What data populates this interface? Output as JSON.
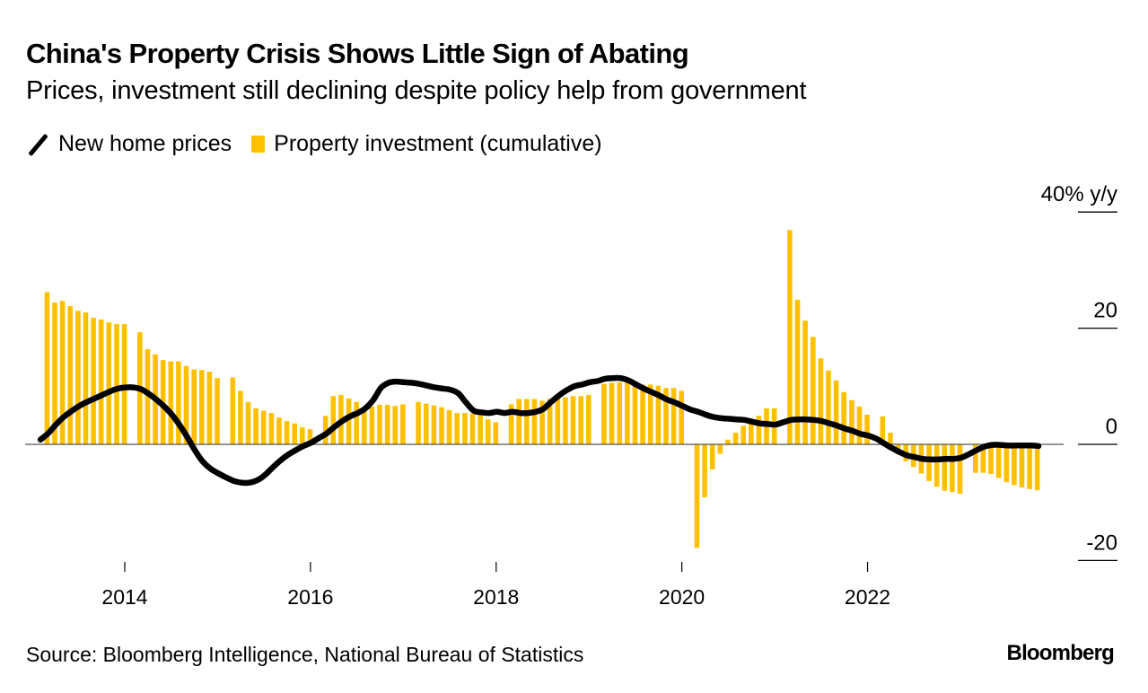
{
  "header": {
    "title": "China's Property Crisis Shows Little Sign of Abating",
    "subtitle": "Prices, investment still declining despite policy help from government"
  },
  "legend": {
    "items": [
      {
        "label": "New home prices",
        "kind": "line",
        "color": "#000000"
      },
      {
        "label": "Property investment (cumulative)",
        "kind": "bar",
        "color": "#ffc000"
      }
    ]
  },
  "footer": {
    "source": "Source: Bloomberg Intelligence, National Bureau of Statistics",
    "brand": "Bloomberg"
  },
  "chart_data": {
    "type": "bar",
    "title": "China's Property Crisis Shows Little Sign of Abating",
    "subtitle": "Prices, investment still declining despite policy help from government",
    "xlabel": "",
    "ylabel": "% y/y",
    "ylim": [
      -20,
      40
    ],
    "yticks": [
      {
        "value": 40,
        "label": "40% y/y"
      },
      {
        "value": 20,
        "label": "20"
      },
      {
        "value": 0,
        "label": "0"
      },
      {
        "value": -20,
        "label": "-20"
      }
    ],
    "xticks": [
      {
        "year": 2014,
        "label": "2014"
      },
      {
        "year": 2016,
        "label": "2016"
      },
      {
        "year": 2018,
        "label": "2018"
      },
      {
        "year": 2020,
        "label": "2020"
      },
      {
        "year": 2022,
        "label": "2022"
      }
    ],
    "x_start": "2013-01",
    "frequency": "monthly",
    "legend_position": "top-left",
    "grid": false,
    "series": [
      {
        "name": "Property investment (cumulative)",
        "type": "bar",
        "color": "#ffc000",
        "values": [
          null,
          26.2,
          24.4,
          24.7,
          23.8,
          23.0,
          22.7,
          21.8,
          21.5,
          21.0,
          20.7,
          20.7,
          null,
          19.3,
          16.4,
          15.5,
          14.5,
          14.3,
          14.3,
          13.5,
          12.9,
          12.8,
          12.5,
          11.4,
          null,
          11.5,
          9.2,
          7.3,
          6.2,
          5.8,
          5.4,
          4.6,
          4.0,
          3.6,
          2.9,
          2.6,
          null,
          4.9,
          8.3,
          8.5,
          7.9,
          7.3,
          6.1,
          6.5,
          6.8,
          6.8,
          6.6,
          6.9,
          null,
          7.3,
          7.0,
          6.7,
          6.4,
          5.9,
          5.4,
          5.4,
          5.3,
          5.0,
          4.3,
          3.8,
          null,
          6.9,
          7.8,
          7.8,
          7.8,
          7.5,
          7.8,
          8.1,
          8.1,
          8.3,
          8.3,
          8.5,
          null,
          10.4,
          10.6,
          10.7,
          10.7,
          10.6,
          10.3,
          10.3,
          10.1,
          9.7,
          9.7,
          9.2,
          null,
          -17.8,
          -9.1,
          -4.3,
          -1.6,
          0.8,
          2.0,
          3.2,
          4.3,
          4.9,
          6.2,
          6.2,
          null,
          36.9,
          24.9,
          21.3,
          18.5,
          14.8,
          12.7,
          11.0,
          9.0,
          7.6,
          6.5,
          5.1,
          null,
          4.8,
          2.0,
          -1.7,
          -2.9,
          -3.9,
          -5.0,
          -6.3,
          -7.3,
          -8.0,
          -8.2,
          -8.5,
          null,
          -4.9,
          -4.9,
          -5.1,
          -5.8,
          -6.5,
          -7.0,
          -7.4,
          -7.7,
          -7.9
        ]
      },
      {
        "name": "New home prices",
        "type": "line",
        "color": "#000000",
        "values": [
          0.8,
          1.9,
          3.4,
          4.7,
          5.7,
          6.6,
          7.3,
          7.9,
          8.5,
          9.1,
          9.6,
          9.8,
          9.8,
          9.5,
          8.7,
          7.7,
          6.5,
          5.1,
          3.3,
          1.2,
          -1.1,
          -3.0,
          -4.2,
          -5.0,
          -5.7,
          -6.3,
          -6.6,
          -6.6,
          -6.2,
          -5.3,
          -4.0,
          -2.8,
          -1.8,
          -1.0,
          -0.3,
          0.3,
          1.1,
          1.9,
          3.0,
          4.0,
          4.8,
          5.4,
          6.2,
          7.6,
          9.7,
          10.6,
          10.8,
          10.7,
          10.6,
          10.4,
          10.1,
          9.8,
          9.6,
          9.4,
          8.8,
          7.2,
          5.8,
          5.5,
          5.4,
          5.6,
          5.4,
          5.6,
          5.4,
          5.4,
          5.6,
          6.1,
          7.3,
          8.4,
          9.3,
          10.0,
          10.3,
          10.7,
          10.9,
          11.3,
          11.4,
          11.4,
          11.0,
          10.3,
          9.6,
          9.0,
          8.4,
          7.7,
          7.2,
          6.6,
          6.0,
          5.6,
          5.1,
          4.7,
          4.5,
          4.4,
          4.3,
          4.2,
          3.9,
          3.6,
          3.5,
          3.4,
          3.8,
          4.2,
          4.3,
          4.3,
          4.2,
          4.0,
          3.6,
          3.2,
          2.7,
          2.3,
          1.8,
          1.5,
          1.0,
          0.2,
          -0.6,
          -1.3,
          -1.9,
          -2.2,
          -2.5,
          -2.6,
          -2.6,
          -2.5,
          -2.5,
          -2.3,
          -1.7,
          -1.0,
          -0.4,
          -0.1,
          -0.1,
          -0.2,
          -0.2,
          -0.2,
          -0.2,
          -0.3
        ]
      }
    ]
  }
}
